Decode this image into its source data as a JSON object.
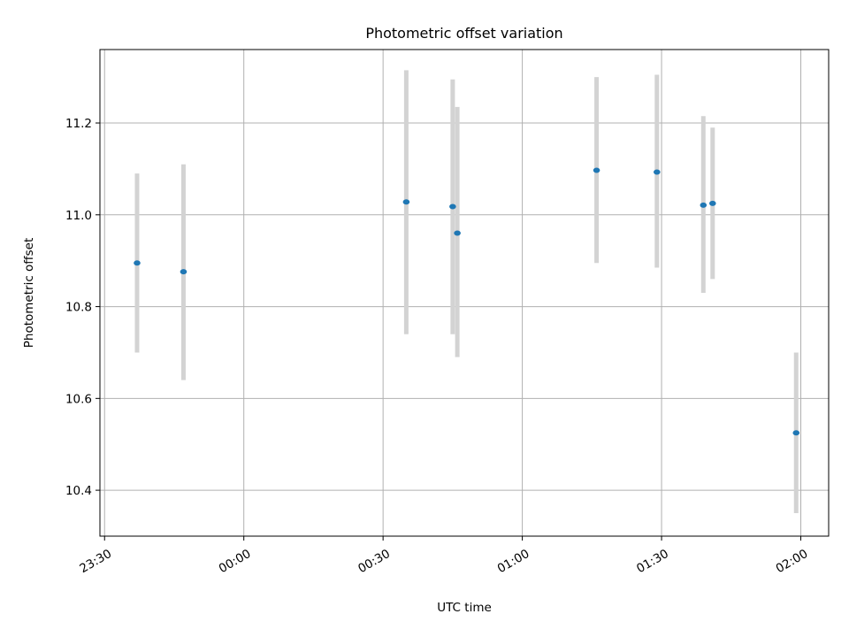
{
  "chart_data": {
    "type": "scatter",
    "title": "Photometric offset variation",
    "xlabel": "UTC time",
    "ylabel": "Photometric offset",
    "x_tick_labels": [
      "23:30",
      "00:00",
      "00:30",
      "01:00",
      "01:30",
      "02:00"
    ],
    "y_tick_labels": [
      "10.4",
      "10.6",
      "10.8",
      "11.0",
      "11.2"
    ],
    "y_ticks": [
      10.4,
      10.6,
      10.8,
      11.0,
      11.2
    ],
    "ylim": [
      10.3,
      11.36
    ],
    "xlim": [
      "23:29",
      "02:06"
    ],
    "grid": true,
    "point_color": "#1f77b4",
    "errorbar_color": "#d3d3d3",
    "points": [
      {
        "x": "23:37",
        "y": 10.895,
        "y_low": 10.7,
        "y_high": 11.09
      },
      {
        "x": "23:47",
        "y": 10.876,
        "y_low": 10.64,
        "y_high": 11.11
      },
      {
        "x": "00:35",
        "y": 11.028,
        "y_low": 10.74,
        "y_high": 11.315
      },
      {
        "x": "00:45",
        "y": 11.018,
        "y_low": 10.74,
        "y_high": 11.295
      },
      {
        "x": "00:46",
        "y": 10.96,
        "y_low": 10.69,
        "y_high": 11.235
      },
      {
        "x": "01:16",
        "y": 11.097,
        "y_low": 10.895,
        "y_high": 11.3
      },
      {
        "x": "01:29",
        "y": 11.093,
        "y_low": 10.885,
        "y_high": 11.305
      },
      {
        "x": "01:39",
        "y": 11.021,
        "y_low": 10.83,
        "y_high": 11.215
      },
      {
        "x": "01:41",
        "y": 11.025,
        "y_low": 10.86,
        "y_high": 11.19
      },
      {
        "x": "01:59",
        "y": 10.525,
        "y_low": 10.35,
        "y_high": 10.7
      }
    ]
  }
}
